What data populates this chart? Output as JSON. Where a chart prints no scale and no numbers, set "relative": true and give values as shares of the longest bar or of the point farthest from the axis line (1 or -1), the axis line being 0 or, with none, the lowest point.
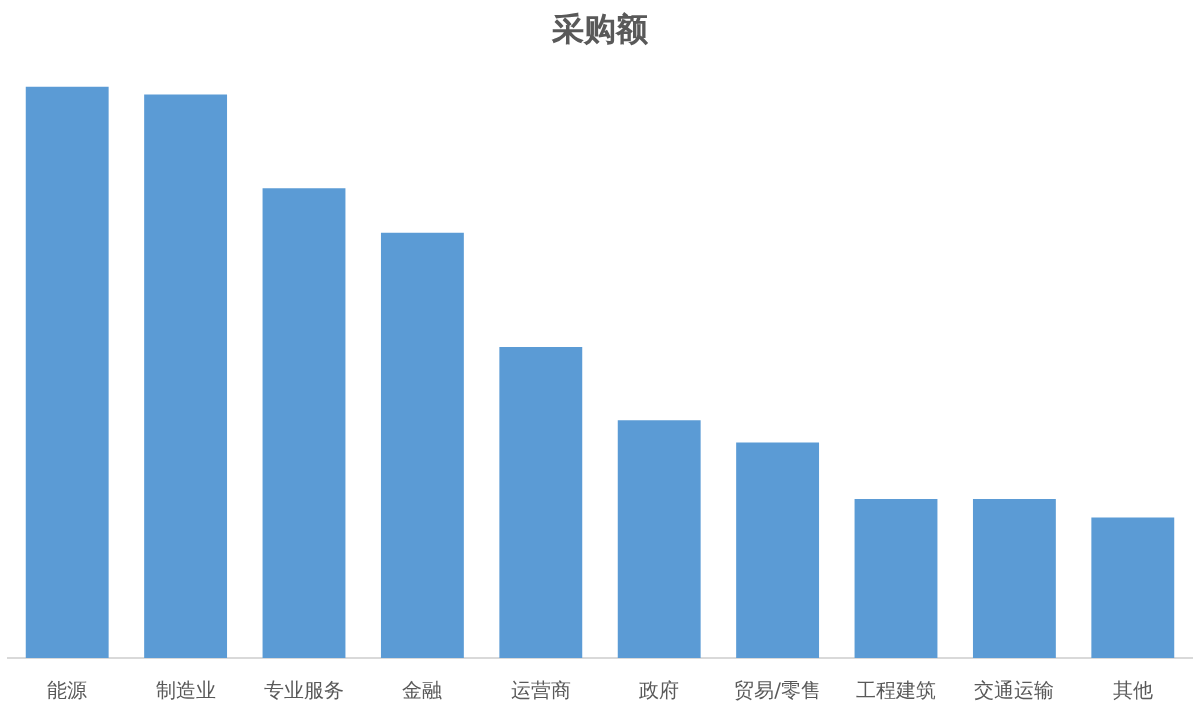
{
  "chart_data": {
    "type": "bar",
    "title": "采购额",
    "relative": true,
    "categories": [
      "能源",
      "制造业",
      "专业服务",
      "金融",
      "运营商",
      "政府",
      "贸易/零售",
      "工程建筑",
      "交通运输",
      "其他"
    ],
    "values": [
      1,
      0.986,
      0.822,
      0.744,
      0.544,
      0.416,
      0.377,
      0.278,
      0.278,
      0.246
    ],
    "color": "#5b9bd5",
    "grid": false,
    "legend": false
  }
}
